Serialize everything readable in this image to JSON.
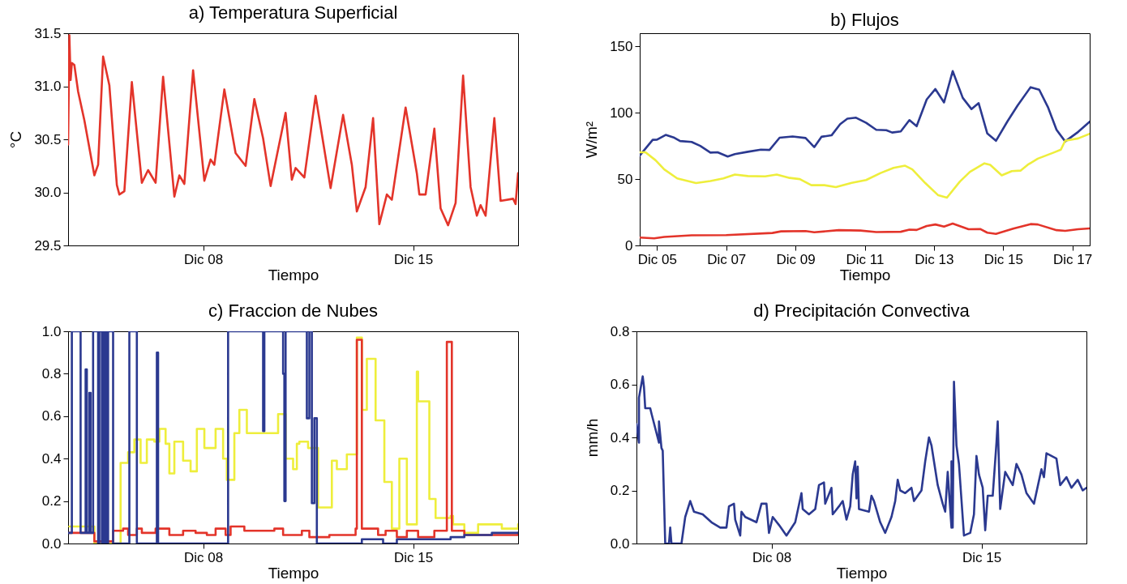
{
  "chart_data": [
    {
      "type": "line",
      "title": "a) Temperatura Superficial",
      "xlabel": "Tiempo",
      "ylabel": "°C",
      "xlim": [
        "--12-03T12:00",
        "--12-18T12:00"
      ],
      "xticks": [
        {
          "value": "--12-08",
          "label": "Dic 08"
        },
        {
          "value": "--12-15",
          "label": "Dic 15"
        }
      ],
      "ylim": [
        29.5,
        31.5
      ],
      "yticks": [
        29.5,
        {
          "value": 30,
          "label": "30.0"
        },
        30.5,
        {
          "value": 31,
          "label": "31.0"
        },
        31.5
      ],
      "series": [
        {
          "color": "#e3342a",
          "x": [
            "--12-03T12:00",
            "--12-03T12:00",
            "--12-03T13:00",
            "--12-03T14:00",
            "--12-03T15:00",
            "--12-03T17:00",
            "--12-03T20:00",
            "--12-04T01:00",
            "--12-04T09:00",
            "--12-04T12:00",
            "--12-04T16:00",
            "--12-04T21:00",
            "--12-05T03:00",
            "--12-05T05:00",
            "--12-05T09:00",
            "--12-05T15:00",
            "--12-05T23:00",
            "--12-06T04:00",
            "--12-06T10:00",
            "--12-06T16:00",
            "--12-07T01:00",
            "--12-07T05:00",
            "--12-07T09:00",
            "--12-07T16:00",
            "--12-08T01:00",
            "--12-08T06:00",
            "--12-08T09:00",
            "--12-08T17:00",
            "--12-09T02:00",
            "--12-09T10:00",
            "--12-09T17:00",
            "--12-10T00:00",
            "--12-10T06:00",
            "--12-10T18:00",
            "--12-10T23:00",
            "--12-11T02:00",
            "--12-11T09:00",
            "--12-11T18:00",
            "--12-12T06:00",
            "--12-12T16:00",
            "--12-12T23:00",
            "--12-13T03:00",
            "--12-13T10:00",
            "--12-13T16:00",
            "--12-13T21:00",
            "--12-14T03:00",
            "--12-14T07:00",
            "--12-14T18:00",
            "--12-15T03:00",
            "--12-15T05:00",
            "--12-15T10:00",
            "--12-15T17:00",
            "--12-15T22:00",
            "--12-16T04:00",
            "--12-16T10:00",
            "--12-16T16:00",
            "--12-16T22:00",
            "--12-17T03:00",
            "--12-17T06:00",
            "--12-17T10:00",
            "--12-17T17:00",
            "--12-17T22:00",
            "--12-18T08:00",
            "--12-18T10:00",
            "--12-18T12:00"
          ],
          "values": [
            30.45,
            30.45,
            31.48,
            31.06,
            31.22,
            31.2,
            30.95,
            30.68,
            30.16,
            30.26,
            31.28,
            31.01,
            30.07,
            29.98,
            30.01,
            31.04,
            30.09,
            30.21,
            30.09,
            31.09,
            29.96,
            30.16,
            30.08,
            31.15,
            30.11,
            30.31,
            30.26,
            30.97,
            30.37,
            30.25,
            30.88,
            30.51,
            30.06,
            30.75,
            30.12,
            30.23,
            30.14,
            30.91,
            30.04,
            30.73,
            30.26,
            29.82,
            30.05,
            30.7,
            29.7,
            29.98,
            29.93,
            30.8,
            30.18,
            29.98,
            29.98,
            30.6,
            29.85,
            29.69,
            29.9,
            31.1,
            30.05,
            29.78,
            29.88,
            29.78,
            30.7,
            29.92,
            29.94,
            29.89,
            30.18
          ]
        }
      ]
    },
    {
      "type": "line",
      "title": "b) Flujos",
      "xlabel": "Tiempo",
      "ylabel": "W/m²",
      "xlim": [
        "--12-04T12:00",
        "--12-17T12:00"
      ],
      "xticks": [
        {
          "value": "--12-05",
          "label": "Dic 05"
        },
        {
          "value": "--12-07",
          "label": "Dic 07"
        },
        {
          "value": "--12-09",
          "label": "Dic 09"
        },
        {
          "value": "--12-11",
          "label": "Dic 11"
        },
        {
          "value": "--12-13",
          "label": "Dic 13"
        },
        {
          "value": "--12-15",
          "label": "Dic 15"
        },
        {
          "value": "--12-17",
          "label": "Dic 17"
        }
      ],
      "ylim": [
        0,
        160
      ],
      "yticks": [
        0,
        50,
        100,
        150
      ],
      "series": [
        {
          "color": "#2b3990",
          "x": [
            "--12-04T12:00",
            "--12-04T21:00",
            "--12-05T00:00",
            "--12-05T06:00",
            "--12-05T12:00",
            "--12-05T16:00",
            "--12-06T00:00",
            "--12-06T06:00",
            "--12-06T13:00",
            "--12-06T18:00",
            "--12-07T01:00",
            "--12-07T06:00",
            "--12-07T15:00",
            "--12-08T00:00",
            "--12-08T06:00",
            "--12-08T13:00",
            "--12-08T22:00",
            "--12-09T07:00",
            "--12-09T13:00",
            "--12-09T18:00",
            "--12-10T01:00",
            "--12-10T07:00",
            "--12-10T12:00",
            "--12-10T18:00",
            "--12-11T01:00",
            "--12-11T08:00",
            "--12-11T15:00",
            "--12-11T19:00",
            "--12-12T01:00",
            "--12-12T07:00",
            "--12-12T12:00",
            "--12-12T19:00",
            "--12-13T01:00",
            "--12-13T07:00",
            "--12-13T13:00",
            "--12-13T20:00",
            "--12-14T02:00",
            "--12-14T07:00",
            "--12-14T13:00",
            "--12-14T19:00",
            "--12-15T03:00",
            "--12-15T10:00",
            "--12-15T19:00",
            "--12-16T01:00",
            "--12-16T07:00",
            "--12-16T13:00",
            "--12-16T19:00",
            "--12-17T04:00",
            "--12-17T12:00"
          ],
          "values": [
            67.7,
            79.6,
            79.8,
            83.3,
            81.2,
            78.7,
            78.0,
            75.0,
            70.0,
            70.2,
            67.0,
            68.8,
            70.6,
            72.2,
            72.0,
            81.2,
            82.1,
            81.0,
            74.1,
            81.9,
            83.0,
            91.5,
            95.6,
            96.3,
            92.4,
            87.2,
            86.9,
            85.1,
            86.0,
            94.5,
            89.9,
            110.1,
            117.9,
            107.8,
            131.4,
            111.2,
            102.8,
            107.3,
            84.4,
            78.9,
            93.6,
            105.5,
            119.3,
            117.4,
            104.4,
            87.2,
            78.4,
            85.6,
            93.3
          ]
        },
        {
          "color": "#eeee3c",
          "x": [
            "--12-04T12:00",
            "--12-04T16:00",
            "--12-04T23:00",
            "--12-05T05:00",
            "--12-05T14:00",
            "--12-06T03:00",
            "--12-06T13:00",
            "--12-06T22:00",
            "--12-07T06:00",
            "--12-07T15:00",
            "--12-08T03:00",
            "--12-08T11:00",
            "--12-08T20:00",
            "--12-09T03:00",
            "--12-09T11:00",
            "--12-09T20:00",
            "--12-10T04:00",
            "--12-10T15:00",
            "--12-11T01:00",
            "--12-11T11:00",
            "--12-11T20:00",
            "--12-12T04:00",
            "--12-12T09:00",
            "--12-12T18:00",
            "--12-13T03:00",
            "--12-13T09:00",
            "--12-13T18:00",
            "--12-14T01:00",
            "--12-14T11:00",
            "--12-14T15:00",
            "--12-14T23:00",
            "--12-15T06:00",
            "--12-15T12:00",
            "--12-15T17:00",
            "--12-16T00:00",
            "--12-16T11:00",
            "--12-16T16:00",
            "--12-16T19:00",
            "--12-17T04:00",
            "--12-17T12:00"
          ],
          "values": [
            70.2,
            70.2,
            64.2,
            57.3,
            50.5,
            47.0,
            48.6,
            50.5,
            53.4,
            52.3,
            52.1,
            53.4,
            50.9,
            50.0,
            45.4,
            45.4,
            44.0,
            47.2,
            49.3,
            54.6,
            58.5,
            60.1,
            57.3,
            47.0,
            37.8,
            36.0,
            48.2,
            55.5,
            61.9,
            60.8,
            52.8,
            56.0,
            56.4,
            60.8,
            65.4,
            70.0,
            72.2,
            78.9,
            80.7,
            84.2
          ]
        },
        {
          "color": "#e3342a",
          "x": [
            "--12-04T12:00",
            "--12-04T22:00",
            "--12-05T05:00",
            "--12-06T00:00",
            "--12-07T00:00",
            "--12-08T08:00",
            "--12-08T14:00",
            "--12-09T07:00",
            "--12-09T13:00",
            "--12-10T06:00",
            "--12-10T21:00",
            "--12-11T08:00",
            "--12-12T01:00",
            "--12-12T07:00",
            "--12-12T12:00",
            "--12-12T19:00",
            "--12-13T01:00",
            "--12-13T07:00",
            "--12-13T13:00",
            "--12-14T00:00",
            "--12-14T08:00",
            "--12-14T13:00",
            "--12-14T19:00",
            "--12-15T07:00",
            "--12-15T19:00",
            "--12-16T00:00",
            "--12-16T13:00",
            "--12-16T19:00",
            "--12-17T04:00",
            "--12-17T12:00"
          ],
          "values": [
            6.0,
            5.3,
            6.4,
            7.6,
            7.8,
            9.4,
            10.6,
            10.8,
            9.9,
            11.5,
            11.2,
            10.1,
            10.3,
            11.9,
            11.7,
            14.7,
            15.8,
            14.2,
            16.5,
            12.2,
            12.4,
            9.6,
            8.7,
            12.6,
            16.1,
            15.8,
            11.5,
            11.0,
            12.2,
            12.8
          ]
        }
      ]
    },
    {
      "type": "step",
      "title": "c) Fraccion de Nubes",
      "xlabel": "Tiempo",
      "xlim": [
        "--12-03T12:00",
        "--12-18T12:00"
      ],
      "xticks": [
        {
          "value": "--12-08",
          "label": "Dic 08"
        },
        {
          "value": "--12-15",
          "label": "Dic 15"
        }
      ],
      "ylim": [
        0,
        1
      ],
      "yticks": [
        {
          "value": 0,
          "label": "0.0"
        },
        0.2,
        0.4,
        0.6,
        0.8,
        {
          "value": 1,
          "label": "1.0"
        }
      ],
      "series": [
        {
          "color": "#eeee3c",
          "x": [
            "--12-03T13:00",
            "--12-04T08:00",
            "--12-04T09:00",
            "--12-05T00:00",
            "--12-05T06:00",
            "--12-05T12:00",
            "--12-05T17:00",
            "--12-05T22:00",
            "--12-06T03:00",
            "--12-06T09:00",
            "--12-06T13:00",
            "--12-06T18:00",
            "--12-06T21:00",
            "--12-07T01:00",
            "--12-07T08:00",
            "--12-07T14:00",
            "--12-07T19:00",
            "--12-08T01:00",
            "--12-08T10:00",
            "--12-08T16:00",
            "--12-08T19:00",
            "--12-09T01:00",
            "--12-09T05:00",
            "--12-09T11:00",
            "--12-09T18:00",
            "--12-10T01:00",
            "--12-10T12:00",
            "--12-10T18:00",
            "--12-11T00:00",
            "--12-11T03:00",
            "--12-11T05:00",
            "--12-11T12:00",
            "--12-11T20:00",
            "--12-12T07:00",
            "--12-12T11:00",
            "--12-12T19:00",
            "--12-13T03:00",
            "--12-13T07:00",
            "--12-13T11:00",
            "--12-13T18:00",
            "--12-14T01:00",
            "--12-14T07:00",
            "--12-14T13:00",
            "--12-14T19:00",
            "--12-15T03:00",
            "--12-15T04:00",
            "--12-15T13:00",
            "--12-15T18:00",
            "--12-16T06:00",
            "--12-16T08:00",
            "--12-16T17:00",
            "--12-17T04:00",
            "--12-17T23:00",
            "--12-18T12:00"
          ],
          "values": [
            0.08,
            0.08,
            0.0,
            0.0,
            0.38,
            0.43,
            0.49,
            0.38,
            0.49,
            0.48,
            0.54,
            0.47,
            0.33,
            0.48,
            0.39,
            0.34,
            0.54,
            0.45,
            0.54,
            0.4,
            0.3,
            0.52,
            0.63,
            0.52,
            0.52,
            0.52,
            0.61,
            0.4,
            0.35,
            0.47,
            0.48,
            0.45,
            0.17,
            0.39,
            0.35,
            0.42,
            0.97,
            0.63,
            0.87,
            0.58,
            0.29,
            0.07,
            0.4,
            0.09,
            0.81,
            0.67,
            0.21,
            0.12,
            0.13,
            0.09,
            0.05,
            0.09,
            0.07,
            0.09
          ]
        },
        {
          "color": "#e3342a",
          "x": [
            "--12-03T13:00",
            "--12-04T08:00",
            "--12-04T09:00",
            "--12-05T00:00",
            "--12-05T08:00",
            "--12-05T12:00",
            "--12-05T19:00",
            "--12-05T23:00",
            "--12-06T10:00",
            "--12-06T21:00",
            "--12-07T08:00",
            "--12-07T18:00",
            "--12-08T03:00",
            "--12-08T10:00",
            "--12-08T18:00",
            "--12-08T22:00",
            "--12-09T09:00",
            "--12-10T09:00",
            "--12-10T16:00",
            "--12-10T20:00",
            "--12-11T07:00",
            "--12-11T13:00",
            "--12-12T05:00",
            "--12-13T02:00",
            "--12-13T03:00",
            "--12-13T07:00",
            "--12-13T20:00",
            "--12-14T02:00",
            "--12-14T11:00",
            "--12-14T19:00",
            "--12-15T04:00",
            "--12-15T17:00",
            "--12-16T03:00",
            "--12-16T07:00",
            "--12-16T17:00",
            "--12-18T12:00"
          ],
          "values": [
            0.05,
            0.05,
            0.01,
            0.06,
            0.07,
            0.04,
            0.07,
            0.05,
            0.07,
            0.04,
            0.06,
            0.05,
            0.04,
            0.07,
            0.04,
            0.08,
            0.06,
            0.07,
            0.04,
            0.04,
            0.06,
            0.03,
            0.04,
            0.07,
            0.96,
            0.07,
            0.04,
            0.06,
            0.03,
            0.06,
            0.03,
            0.06,
            0.95,
            0.06,
            0.04,
            0.05
          ]
        },
        {
          "color": "#2b3990",
          "x": [
            "--12-03T12:00",
            "--12-03T15:00",
            "--12-03T22:00",
            "--12-04T02:00",
            "--12-04T03:00",
            "--12-04T05:00",
            "--12-04T06:00",
            "--12-04T08:00",
            "--12-04T12:00",
            "--12-04T13:00",
            "--12-04T15:00",
            "--12-04T16:00",
            "--12-04T17:00",
            "--12-04T18:00",
            "--12-04T19:00",
            "--12-04T20:00",
            "--12-05T00:00",
            "--12-05T13:00",
            "--12-05T19:00",
            "--12-06T11:00",
            "--12-06T12:00",
            "--12-08T20:00",
            "--12-10T00:00",
            "--12-10T01:00",
            "--12-10T16:00",
            "--12-10T17:00",
            "--12-10T18:00",
            "--12-11T11:00",
            "--12-11T13:00",
            "--12-11T15:00",
            "--12-11T17:00",
            "--12-11T19:00",
            "--12-13T07:00",
            "--12-14T00:00",
            "--12-14T11:00",
            "--12-16T06:00",
            "--12-16T17:00",
            "--12-17T15:00",
            "--12-18T12:00"
          ],
          "values": [
            0.05,
            1.0,
            0.05,
            0.82,
            0.05,
            0.71,
            0.05,
            1.0,
            0.0,
            1.0,
            0.0,
            1.0,
            0.0,
            1.0,
            0.0,
            1.0,
            0.0,
            1.0,
            0.0,
            0.9,
            0.0,
            1.0,
            0.53,
            1.0,
            0.8,
            0.2,
            1.0,
            0.59,
            1.0,
            0.19,
            0.59,
            0.0,
            0.02,
            0.0,
            0.02,
            0.03,
            0.04,
            0.05,
            0.05
          ]
        }
      ]
    },
    {
      "type": "line",
      "title": "d) Precipitación Convectiva",
      "xlabel": "Tiempo",
      "ylabel": "mm/h",
      "xlim": [
        "--12-03T12:00",
        "--12-18T12:00"
      ],
      "xticks": [
        {
          "value": "--12-08",
          "label": "Dic 08"
        },
        {
          "value": "--12-15",
          "label": "Dic 15"
        }
      ],
      "ylim": [
        0,
        0.8
      ],
      "yticks": [
        {
          "value": 0,
          "label": "0.0"
        },
        0.2,
        0.4,
        0.6,
        0.8
      ],
      "series": [
        {
          "color": "#2b3990",
          "x": [
            "--12-03T12:00",
            "--12-03T14:00",
            "--12-03T14:00",
            "--12-03T17:00",
            "--12-03T18:00",
            "--12-03T19:00",
            "--12-03T23:00",
            "--12-04T00:00",
            "--12-04T06:00",
            "--12-04T06:00",
            "--12-04T08:00",
            "--12-04T09:00",
            "--12-04T11:00",
            "--12-04T14:00",
            "--12-04T15:00",
            "--12-04T16:00",
            "--12-05T00:00",
            "--12-05T03:00",
            "--12-05T07:00",
            "--12-05T10:00",
            "--12-05T17:00",
            "--12-06T00:00",
            "--12-06T07:00",
            "--12-06T12:00",
            "--12-06T14:00",
            "--12-06T18:00",
            "--12-06T19:00",
            "--12-06T23:00",
            "--12-07T00:00",
            "--12-07T03:00",
            "--12-07T12:00",
            "--12-07T16:00",
            "--12-07T20:00",
            "--12-07T22:00",
            "--12-08T01:00",
            "--12-08T06:00",
            "--12-08T12:00",
            "--12-08T19:00",
            "--12-09T00:00",
            "--12-09T01:00",
            "--12-09T06:00",
            "--12-09T11:00",
            "--12-09T14:00",
            "--12-09T18:00",
            "--12-09T19:00",
            "--12-10T00:00",
            "--12-10T01:00",
            "--12-10T06:00",
            "--12-10T09:00",
            "--12-10T12:00",
            "--12-10T15:00",
            "--12-10T17:00",
            "--12-10T19:00",
            "--12-10T20:00",
            "--12-10T21:00",
            "--12-10T22:00",
            "--12-11T06:00",
            "--12-11T08:00",
            "--12-11T10:00",
            "--12-11T15:00",
            "--12-11T19:00",
            "--12-12T00:00",
            "--12-12T03:00",
            "--12-12T05:00",
            "--12-12T07:00",
            "--12-12T11:00",
            "--12-12T16:00",
            "--12-12T18:00",
            "--12-13T00:00",
            "--12-13T03:00",
            "--12-13T06:00",
            "--12-13T08:00",
            "--12-13T13:00",
            "--12-13T17:00",
            "--12-13T19:00",
            "--12-13T21:00",
            "--12-14T00:00",
            "--12-14T00:00",
            "--12-14T01:00",
            "--12-14T02:00",
            "--12-14T04:00",
            "--12-14T06:00",
            "--12-14T10:00",
            "--12-14T15:00",
            "--12-14T18:00",
            "--12-14T20:00",
            "--12-14T22:00",
            "--12-15T01:00",
            "--12-15T03:00",
            "--12-15T05:00",
            "--12-15T09:00",
            "--12-15T12:00",
            "--12-15T13:00",
            "--12-15T15:00",
            "--12-15T19:00",
            "--12-16T01:00",
            "--12-16T04:00",
            "--12-16T08:00",
            "--12-16T12:00",
            "--12-16T18:00",
            "--12-17T00:00",
            "--12-17T02:00",
            "--12-17T04:00",
            "--12-17T12:00",
            "--12-17T15:00",
            "--12-17T20:00",
            "--12-18T00:00",
            "--12-18T05:00",
            "--12-18T09:00",
            "--12-18T12:00"
          ],
          "values": [
            0.45,
            0.38,
            0.55,
            0.63,
            0.59,
            0.51,
            0.51,
            0.49,
            0.38,
            0.46,
            0.36,
            0.35,
            0.0,
            0.0,
            0.06,
            0.0,
            0.0,
            0.1,
            0.16,
            0.12,
            0.11,
            0.08,
            0.06,
            0.06,
            0.14,
            0.15,
            0.09,
            0.03,
            0.12,
            0.1,
            0.08,
            0.15,
            0.15,
            0.04,
            0.1,
            0.07,
            0.03,
            0.08,
            0.19,
            0.13,
            0.11,
            0.13,
            0.22,
            0.23,
            0.15,
            0.21,
            0.11,
            0.14,
            0.16,
            0.09,
            0.14,
            0.26,
            0.31,
            0.17,
            0.29,
            0.13,
            0.12,
            0.18,
            0.16,
            0.08,
            0.04,
            0.1,
            0.16,
            0.24,
            0.2,
            0.19,
            0.21,
            0.16,
            0.2,
            0.31,
            0.4,
            0.37,
            0.22,
            0.15,
            0.12,
            0.27,
            0.06,
            0.31,
            0.06,
            0.61,
            0.37,
            0.3,
            0.03,
            0.04,
            0.11,
            0.33,
            0.26,
            0.21,
            0.05,
            0.18,
            0.18,
            0.38,
            0.46,
            0.13,
            0.27,
            0.22,
            0.3,
            0.26,
            0.19,
            0.15,
            0.28,
            0.25,
            0.34,
            0.32,
            0.22,
            0.25,
            0.21,
            0.24,
            0.2,
            0.21
          ]
        }
      ]
    }
  ]
}
